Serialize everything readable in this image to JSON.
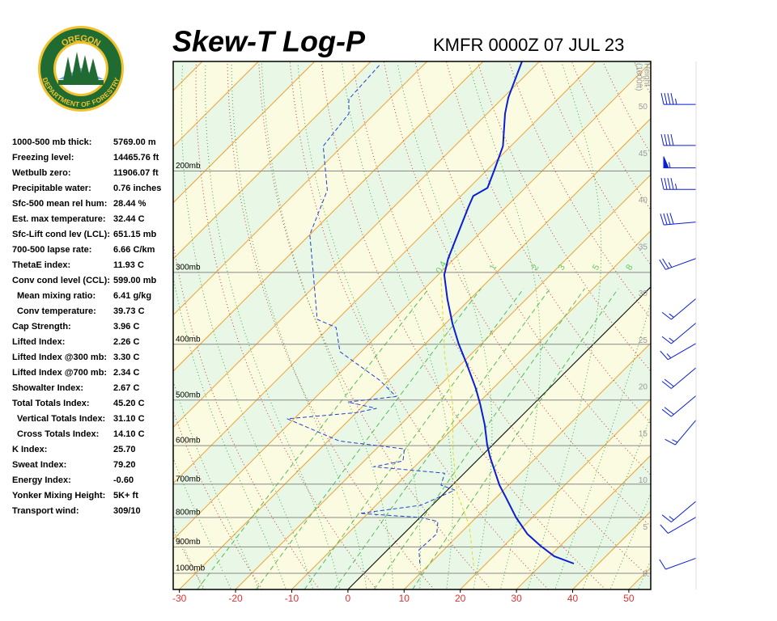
{
  "logo": {
    "top": "OREGON",
    "bottom": "DEPARTMENT OF FORESTRY"
  },
  "indices": [
    {
      "label": "1000-500 mb thick:",
      "value": "5769.00 m"
    },
    {
      "label": "Freezing level:",
      "value": "14465.76 ft"
    },
    {
      "label": "Wetbulb zero:",
      "value": "11906.07 ft"
    },
    {
      "label": "Precipitable water:",
      "value": "0.76 inches"
    },
    {
      "label": "Sfc-500 mean rel hum:",
      "value": "28.44 %"
    },
    {
      "label": "Est. max temperature:",
      "value": "32.44 C"
    },
    {
      "label": "Sfc-Lift cond lev (LCL):",
      "value": "651.15 mb"
    },
    {
      "label": "700-500 lapse rate:",
      "value": "6.66 C/km"
    },
    {
      "label": "ThetaE index:",
      "value": "11.93 C"
    },
    {
      "label": "Conv cond level (CCL):",
      "value": "599.00 mb"
    },
    {
      "label": "Mean mixing ratio:",
      "value": "6.41 g/kg",
      "indent": true
    },
    {
      "label": "Conv temperature:",
      "value": "39.73 C",
      "indent": true
    },
    {
      "label": "Cap Strength:",
      "value": "3.96 C"
    },
    {
      "label": "Lifted Index:",
      "value": "2.26 C"
    },
    {
      "label": "Lifted Index @300 mb:",
      "value": "3.30 C"
    },
    {
      "label": "Lifted Index @700 mb:",
      "value": "2.34 C"
    },
    {
      "label": "Showalter Index:",
      "value": "2.67 C"
    },
    {
      "label": "Total Totals Index:",
      "value": "45.20 C"
    },
    {
      "label": "Vertical Totals Index:",
      "value": "31.10 C",
      "indent": true
    },
    {
      "label": "Cross Totals Index:",
      "value": "14.10 C",
      "indent": true
    },
    {
      "label": "K Index:",
      "value": "25.70"
    },
    {
      "label": "Sweat Index:",
      "value": "79.20"
    },
    {
      "label": "Energy Index:",
      "value": "-0.60"
    },
    {
      "label": "Yonker Mixing Height:",
      "value": "5K+ ft"
    },
    {
      "label": "Transport wind:",
      "value": "309/10"
    }
  ],
  "chart_data": {
    "type": "skewt",
    "title": "Skew-T Log-P",
    "subtitle": "KMFR 0000Z 07 JUL 23",
    "xlim": [
      -31.1,
      53.9
    ],
    "xticks": [
      -30,
      -20,
      -10,
      0,
      10,
      20,
      30,
      40,
      50
    ],
    "ylim": [
      1067,
      129
    ],
    "yscale": "log",
    "yticks": [
      {
        "value": 200,
        "label": "200mb"
      },
      {
        "value": 300,
        "label": "300mb"
      },
      {
        "value": 400,
        "label": "400mb"
      },
      {
        "value": 500,
        "label": "500mb"
      },
      {
        "value": 600,
        "label": "600mb"
      },
      {
        "value": 700,
        "label": "700mb"
      },
      {
        "value": 800,
        "label": "800mb"
      },
      {
        "value": 900,
        "label": "900mb"
      },
      {
        "value": 1000,
        "label": "1000mb"
      }
    ],
    "y2label": [
      "Height",
      "(1000ft)"
    ],
    "y2lim": [
      -1.65,
      54.9
    ],
    "y2ticks": [
      0,
      5,
      10,
      15,
      20,
      25,
      30,
      35,
      40,
      45,
      50
    ],
    "mixing_ratio": [
      0.4,
      1,
      2,
      3,
      5,
      8
    ],
    "series": [
      {
        "color": "#0a1ed2",
        "dash": "none",
        "width": 2,
        "pressure": [
          962,
          934,
          896,
          854,
          800,
          738,
          703,
          628,
          598,
          552,
          509,
          477,
          433,
          399,
          368,
          334,
          303,
          284,
          258,
          231,
          221,
          214,
          199,
          181,
          159,
          149,
          129
        ],
        "values": [
          35.6,
          30.8,
          26.5,
          22.0,
          17.1,
          11.7,
          8.4,
          1.7,
          -1.0,
          -5.0,
          -9.4,
          -13.1,
          -19.0,
          -24.1,
          -28.8,
          -34.0,
          -38.9,
          -41.1,
          -43.7,
          -46.7,
          -47.8,
          -46.7,
          -48.7,
          -51.4,
          -56.8,
          -59.1,
          -63.1
        ]
      },
      {
        "color": "#2040d0",
        "dash": "5 3",
        "width": 1,
        "pressure": [
          962,
          911,
          854,
          813,
          800,
          787,
          762,
          717,
          703,
          670,
          653,
          638,
          608,
          589,
          539,
          526,
          517,
          504,
          493,
          462,
          412,
          374,
          362,
          303,
          258,
          216,
          181,
          159,
          150,
          131
        ],
        "values": [
          8.2,
          5.6,
          5.9,
          3.9,
          0.1,
          -11.4,
          -2.0,
          1.3,
          -2.0,
          -3.5,
          -17.3,
          -13.1,
          -15.0,
          -28.0,
          -41.2,
          -30.1,
          -27.2,
          -33.4,
          -25.8,
          -31.6,
          -43.8,
          -48.8,
          -53.6,
          -62.2,
          -70.0,
          -74.8,
          -83.4,
          -84.6,
          -87.2,
          -87.8
        ]
      },
      {
        "color": "#e0dc20",
        "dash": "4 3",
        "width": 1,
        "pressure": [
          971,
          826,
          726,
          618,
          509,
          419,
          303
        ],
        "values": [
          18.2,
          10.2,
          2.3,
          -5.6,
          -14.3,
          -24.4,
          -39.5
        ]
      }
    ],
    "winds": {
      "height": [
        1.7,
        6.1,
        7.8,
        16.5,
        19.1,
        22.1,
        24.7,
        26.9,
        29.5,
        33.8,
        37.7,
        41.2,
        43.5,
        45.9,
        50.3
      ],
      "direction": [
        250,
        240,
        230,
        220,
        230,
        230,
        240,
        230,
        230,
        250,
        265,
        270,
        270,
        270,
        270
      ],
      "speed": [
        10,
        10,
        15,
        15,
        20,
        20,
        15,
        15,
        15,
        25,
        40,
        45,
        55,
        40,
        45
      ]
    }
  }
}
